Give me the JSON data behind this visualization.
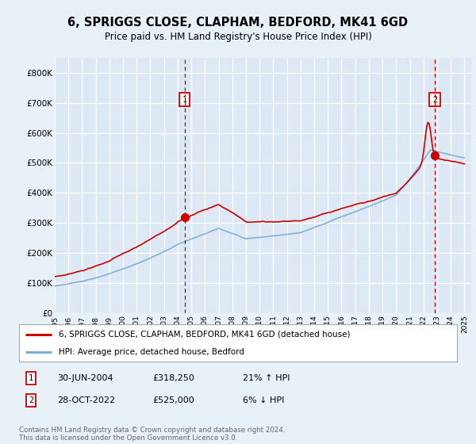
{
  "title": "6, SPRIGGS CLOSE, CLAPHAM, BEDFORD, MK41 6GD",
  "subtitle": "Price paid vs. HM Land Registry's House Price Index (HPI)",
  "background_color": "#e8f0f8",
  "plot_bg_color": "#dce9f5",
  "ylim": [
    0,
    850000
  ],
  "yticks": [
    0,
    100000,
    200000,
    300000,
    400000,
    500000,
    600000,
    700000,
    800000
  ],
  "ytick_labels": [
    "£0",
    "£100K",
    "£200K",
    "£300K",
    "£400K",
    "£500K",
    "£600K",
    "£700K",
    "£800K"
  ],
  "x_start_year": 1995,
  "x_end_year": 2025,
  "sale1_date": 2004.5,
  "sale1_price": 318250,
  "sale1_label": "1",
  "sale2_date": 2022.83,
  "sale2_price": 525000,
  "sale2_label": "2",
  "red_line_color": "#cc0000",
  "blue_line_color": "#7aaed6",
  "legend_label_red": "6, SPRIGGS CLOSE, CLAPHAM, BEDFORD, MK41 6GD (detached house)",
  "legend_label_blue": "HPI: Average price, detached house, Bedford",
  "footer": "Contains HM Land Registry data © Crown copyright and database right 2024.\nThis data is licensed under the Open Government Licence v3.0.",
  "dashed_line_color": "#cc0000",
  "sale_dates_text": [
    "30-JUN-2004",
    "28-OCT-2022"
  ],
  "sale_prices_text": [
    "£318,250",
    "£525,000"
  ],
  "sale_hpi_text": [
    "21% ↑ HPI",
    "6% ↓ HPI"
  ]
}
